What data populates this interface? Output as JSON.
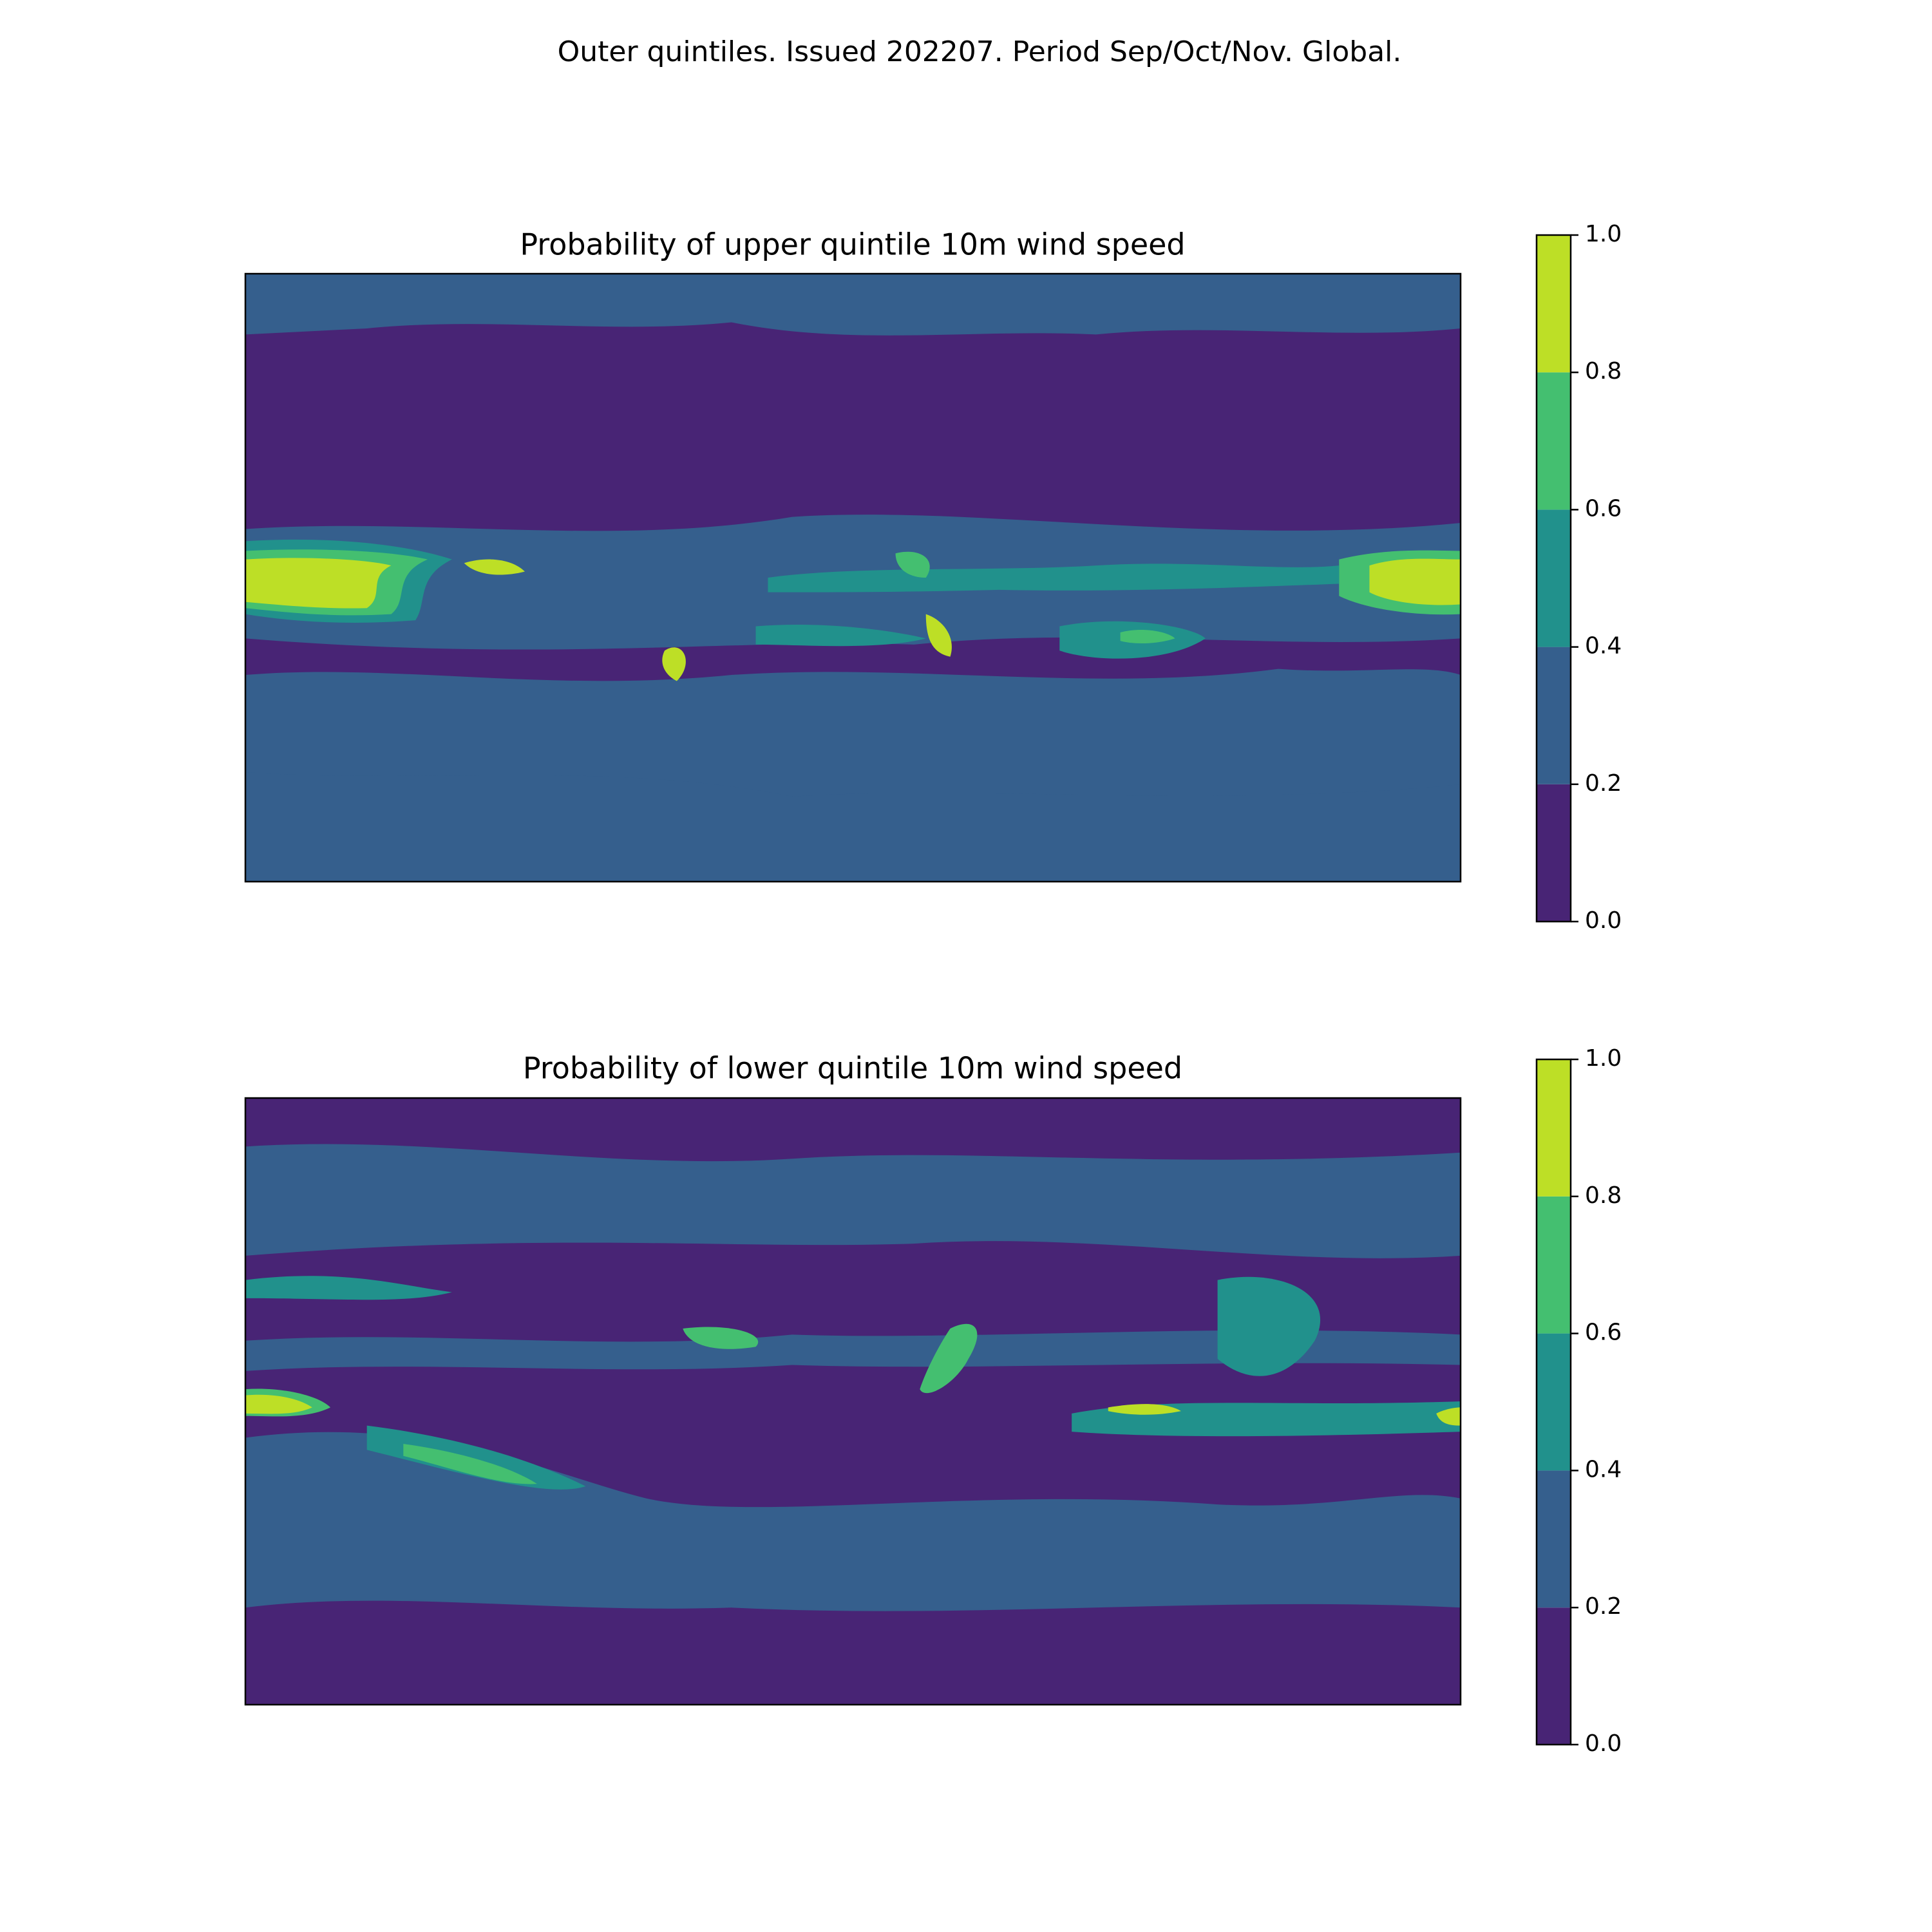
{
  "title": "Outer quintiles. Issued 202207. Period Sep/Oct/Nov. Global.",
  "chart_data": [
    {
      "type": "contourf",
      "title": "Probability of upper quintile 10m wind speed",
      "colors": [
        "#482475",
        "#355f8d",
        "#21918c",
        "#44bf70",
        "#bddf26"
      ],
      "ylim": [
        0,
        1
      ],
      "yticks": [
        {
          "value": 0,
          "label": "0.0"
        },
        0.2,
        0.4,
        0.6,
        0.8,
        {
          "value": 1,
          "label": "1.0"
        }
      ]
    },
    {
      "type": "contourf",
      "title": "Probability of lower quintile 10m wind speed",
      "colors": [
        "#482475",
        "#355f8d",
        "#21918c",
        "#44bf70",
        "#bddf26"
      ],
      "ylim": [
        0,
        1
      ],
      "yticks": [
        {
          "value": 0,
          "label": "0.0"
        },
        0.2,
        0.4,
        0.6,
        0.8,
        {
          "value": 1,
          "label": "1.0"
        }
      ]
    }
  ]
}
